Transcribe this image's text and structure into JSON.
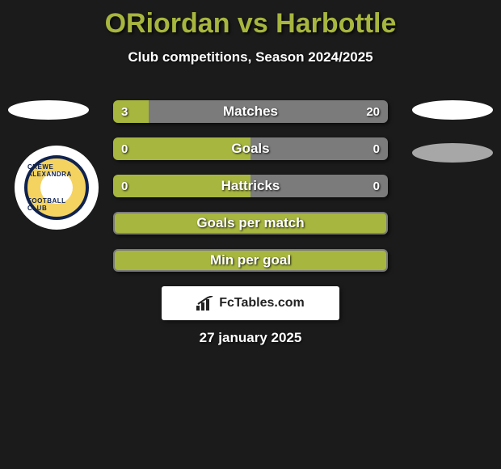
{
  "title": {
    "text": "ORiordan vs Harbottle",
    "color": "#a7b63e"
  },
  "subtitle": "Club competitions, Season 2024/2025",
  "date": "27 january 2025",
  "brand": "FcTables.com",
  "club_badge": {
    "top_text": "CREWE ALEXANDRA",
    "bottom_text": "FOOTBALL CLUB"
  },
  "colors": {
    "left_series": "#a7b63e",
    "right_series": "#7b7b7b",
    "bar_background": "#a7b63e",
    "single_bar_border": "#7b7b7b"
  },
  "bars": [
    {
      "label": "Matches",
      "left_value": "3",
      "right_value": "20",
      "left_pct": 13,
      "right_pct": 87,
      "show_values": true,
      "split": true
    },
    {
      "label": "Goals",
      "left_value": "0",
      "right_value": "0",
      "left_pct": 50,
      "right_pct": 50,
      "show_values": true,
      "split": true
    },
    {
      "label": "Hattricks",
      "left_value": "0",
      "right_value": "0",
      "left_pct": 50,
      "right_pct": 50,
      "show_values": true,
      "split": true
    },
    {
      "label": "Goals per match",
      "show_values": false,
      "split": false
    },
    {
      "label": "Min per goal",
      "show_values": false,
      "split": false
    }
  ]
}
